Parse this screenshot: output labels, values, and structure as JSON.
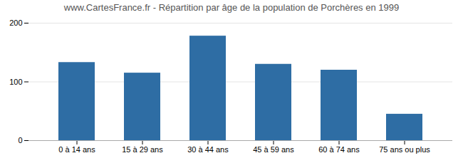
{
  "chart_data": {
    "type": "bar",
    "title": "www.CartesFrance.fr - Répartition par âge de la population de Porchères en 1999",
    "categories": [
      "0 à 14 ans",
      "15 à 29 ans",
      "30 à 44 ans",
      "45 à 59 ans",
      "60 à 74 ans",
      "75 ans ou plus"
    ],
    "values": [
      133,
      115,
      178,
      130,
      120,
      45
    ],
    "color": "#2e6da4",
    "ylim": [
      0,
      200
    ],
    "yticks": [
      0,
      100,
      200
    ],
    "grid": true
  }
}
